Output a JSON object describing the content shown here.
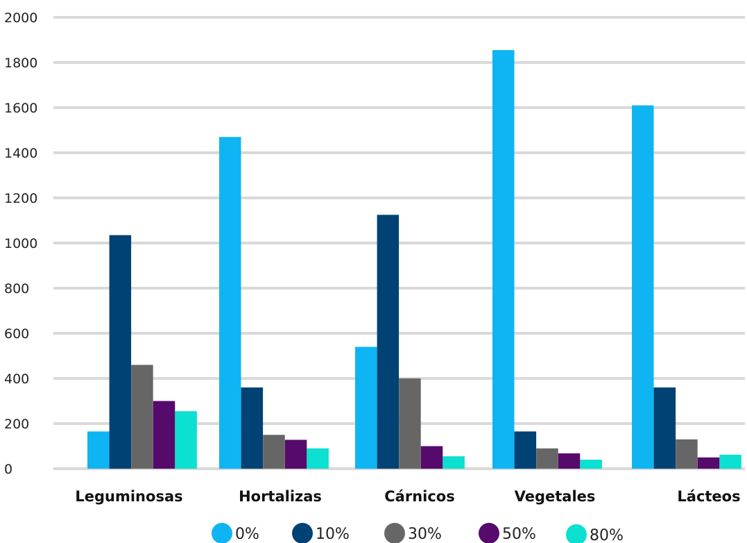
{
  "chart_data": {
    "type": "bar",
    "categories": [
      "Leguminosas",
      "Hortalizas",
      "Cárnicos",
      "Vegetales",
      "Lácteos"
    ],
    "series": [
      {
        "name": "0%",
        "color": "#0fb5f2",
        "values": [
          165,
          1470,
          540,
          1855,
          1610
        ]
      },
      {
        "name": "10%",
        "color": "#004273",
        "values": [
          1035,
          360,
          1125,
          165,
          360
        ]
      },
      {
        "name": "30%",
        "color": "#666666",
        "values": [
          460,
          150,
          400,
          90,
          130
        ]
      },
      {
        "name": "50%",
        "color": "#560a6b",
        "values": [
          300,
          128,
          100,
          68,
          50
        ]
      },
      {
        "name": "80%",
        "color": "#0ce0d0",
        "values": [
          255,
          90,
          55,
          40,
          62
        ]
      }
    ],
    "ylim": [
      0,
      2000
    ],
    "yticks": [
      0,
      200,
      400,
      600,
      800,
      1000,
      1200,
      1400,
      1600,
      1800,
      2000
    ],
    "title": "",
    "xlabel": "",
    "ylabel": "",
    "grid": true,
    "legend_position": "bottom"
  }
}
